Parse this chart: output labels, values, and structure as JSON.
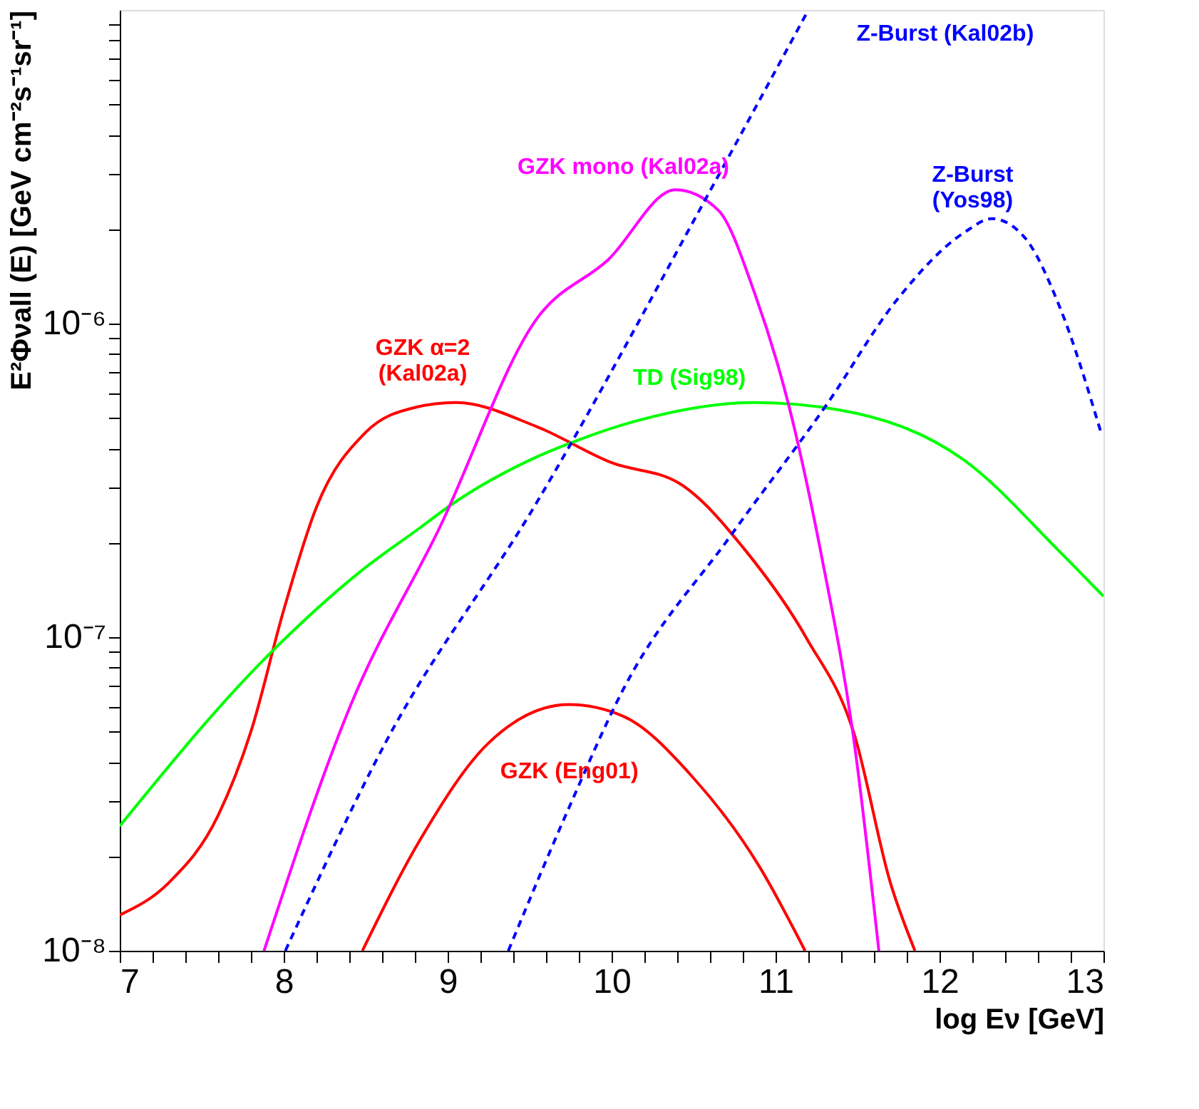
{
  "chart_data": {
    "type": "line",
    "xlabel": "log Eν [GeV]",
    "ylabel": "E²Φνall (E) [GeV cm⁻²s⁻¹sr⁻¹]",
    "log": "y",
    "xlim": [
      7,
      13
    ],
    "ylim": [
      1e-08,
      1e-05
    ],
    "grid": false,
    "marker": "none",
    "xticks": [
      7,
      {
        "value": 7.2,
        "label": null
      },
      {
        "value": 7.4,
        "label": null
      },
      {
        "value": 7.6,
        "label": null
      },
      {
        "value": 7.8,
        "label": null
      },
      8,
      {
        "value": 8.2,
        "label": null
      },
      {
        "value": 8.4,
        "label": null
      },
      {
        "value": 8.6,
        "label": null
      },
      {
        "value": 8.8,
        "label": null
      },
      9,
      {
        "value": 9.2,
        "label": null
      },
      {
        "value": 9.4,
        "label": null
      },
      {
        "value": 9.6,
        "label": null
      },
      {
        "value": 9.8,
        "label": null
      },
      10,
      {
        "value": 10.2,
        "label": null
      },
      {
        "value": 10.4,
        "label": null
      },
      {
        "value": 10.6,
        "label": null
      },
      {
        "value": 10.8,
        "label": null
      },
      11,
      {
        "value": 11.2,
        "label": null
      },
      {
        "value": 11.4,
        "label": null
      },
      {
        "value": 11.6,
        "label": null
      },
      {
        "value": 11.8,
        "label": null
      },
      12,
      {
        "value": 12.2,
        "label": null
      },
      {
        "value": 12.4,
        "label": null
      },
      {
        "value": 12.6,
        "label": null
      },
      {
        "value": 12.8,
        "label": null
      },
      13
    ],
    "yticks": [
      {
        "value": 1e-08,
        "label": "10⁻⁸"
      },
      {
        "value": 2e-08,
        "label": null
      },
      {
        "value": 3e-08,
        "label": null
      },
      {
        "value": 4e-08,
        "label": null
      },
      {
        "value": 5e-08,
        "label": null
      },
      {
        "value": 6e-08,
        "label": null
      },
      {
        "value": 7e-08,
        "label": null
      },
      {
        "value": 8e-08,
        "label": null
      },
      {
        "value": 9e-08,
        "label": null
      },
      {
        "value": 1e-07,
        "label": "10⁻⁷"
      },
      {
        "value": 2e-07,
        "label": null
      },
      {
        "value": 3e-07,
        "label": null
      },
      {
        "value": 4e-07,
        "label": null
      },
      {
        "value": 5e-07,
        "label": null
      },
      {
        "value": 6e-07,
        "label": null
      },
      {
        "value": 7e-07,
        "label": null
      },
      {
        "value": 8e-07,
        "label": null
      },
      {
        "value": 9e-07,
        "label": null
      },
      {
        "value": 1e-06,
        "label": "10⁻⁶"
      },
      {
        "value": 2e-06,
        "label": null
      },
      {
        "value": 3e-06,
        "label": null
      },
      {
        "value": 4e-06,
        "label": null
      },
      {
        "value": 5e-06,
        "label": null
      },
      {
        "value": 6e-06,
        "label": null
      },
      {
        "value": 7e-06,
        "label": null
      },
      {
        "value": 8e-06,
        "label": null
      },
      {
        "value": 9e-06,
        "label": null
      }
    ],
    "series": [
      {
        "color": "#ff0000",
        "line_style": "solid",
        "x": [
          7,
          7.3,
          7.6,
          7.8,
          8.0,
          8.2,
          8.5,
          8.8,
          9.05,
          9.54,
          10.0,
          10.41,
          10.82,
          11.19,
          11.48,
          11.7,
          11.85
        ],
        "values": [
          1.3e-08,
          1.65e-08,
          2.7e-08,
          5e-08,
          1.22e-07,
          2.6e-07,
          4.5e-07,
          5.4e-07,
          5.6e-07,
          4.7e-07,
          3.6e-07,
          3.1e-07,
          1.88e-07,
          9.9e-08,
          4.9e-08,
          1.65e-08,
          1e-08
        ]
      },
      {
        "color": "#ff0000",
        "line_style": "solid",
        "x": [
          8.48,
          8.83,
          9.25,
          9.74,
          10.07,
          10.49,
          10.9,
          11.18
        ],
        "values": [
          1e-08,
          2.25e-08,
          4.6e-08,
          6.1e-08,
          5.6e-08,
          3.6e-08,
          1.86e-08,
          1e-08
        ]
      },
      {
        "color": "#00ff00",
        "line_style": "solid",
        "x": [
          7,
          7.89,
          8.5,
          8.83,
          9.02,
          9.54,
          9.8,
          10.13,
          10.87,
          11.39,
          12.15,
          12.73,
          13
        ],
        "values": [
          2.5e-08,
          8.6e-08,
          1.67e-07,
          2.23e-07,
          2.64e-07,
          3.75e-07,
          4.26e-07,
          4.86e-07,
          5.6e-07,
          5.3e-07,
          3.67e-07,
          1.88e-07,
          1.35e-07
        ]
      },
      {
        "color": "#ff00ff",
        "line_style": "solid",
        "x": [
          7.88,
          8.41,
          8.95,
          9.54,
          9.98,
          10.39,
          10.65,
          10.87,
          11.08,
          11.28,
          11.48,
          11.63
        ],
        "values": [
          1e-08,
          6.1e-08,
          2.23e-07,
          1.03e-06,
          1.6e-06,
          2.67e-06,
          2.3e-06,
          1.26e-06,
          5.5e-07,
          1.82e-07,
          4.6e-08,
          1e-08
        ]
      },
      {
        "color": "#0000ff",
        "line_style": "dashed",
        "x": [
          8.01,
          8.62,
          9.54,
          10.59,
          11.2
        ],
        "values": [
          1e-08,
          4.6e-08,
          2.67e-07,
          2.59e-06,
          1e-05
        ]
      },
      {
        "color": "#0000ff",
        "line_style": "dashed",
        "x": [
          9.37,
          9.74,
          10.07,
          10.73,
          11.31,
          11.74,
          12.15,
          12.32,
          12.52,
          12.73,
          12.99
        ],
        "values": [
          1e-08,
          2.86e-08,
          6.8e-08,
          2.12e-07,
          5.5e-07,
          1.19e-06,
          1.95e-06,
          2.16e-06,
          1.88e-06,
          1.14e-06,
          4.4e-07
        ]
      }
    ],
    "annotations": [
      "Z-Burst (Kal02b)",
      "GZK mono (Kal02a)",
      "Z-Burst\n(Yos98)",
      "GZK α=2\n(Kal02a)",
      "TD (Sig98)",
      "GZK (Eng01)"
    ]
  }
}
